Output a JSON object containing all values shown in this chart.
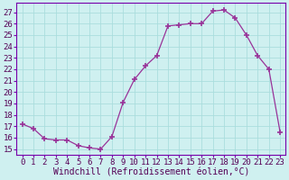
{
  "x": [
    0,
    1,
    2,
    3,
    4,
    5,
    6,
    7,
    8,
    9,
    10,
    11,
    12,
    13,
    14,
    15,
    16,
    17,
    18,
    19,
    20,
    21,
    22,
    23
  ],
  "y": [
    17.2,
    16.8,
    15.9,
    15.8,
    15.8,
    15.3,
    15.1,
    15.0,
    16.1,
    19.1,
    21.1,
    22.3,
    23.2,
    25.8,
    25.9,
    26.0,
    26.0,
    27.1,
    27.2,
    26.5,
    25.0,
    23.2,
    22.0,
    16.5
  ],
  "line_color": "#993399",
  "marker": "+",
  "marker_size": 4,
  "marker_linewidth": 1.2,
  "bg_color": "#cff0f0",
  "grid_color": "#aadddd",
  "xlabel": "Windchill (Refroidissement éolien,°C)",
  "xlabel_fontsize": 7.0,
  "xtick_labels": [
    "0",
    "1",
    "2",
    "3",
    "4",
    "5",
    "6",
    "7",
    "8",
    "9",
    "10",
    "11",
    "12",
    "13",
    "14",
    "15",
    "16",
    "17",
    "18",
    "19",
    "20",
    "21",
    "22",
    "23"
  ],
  "ytick_values": [
    15,
    16,
    17,
    18,
    19,
    20,
    21,
    22,
    23,
    24,
    25,
    26,
    27
  ],
  "ylim": [
    14.5,
    27.8
  ],
  "xlim": [
    -0.5,
    23.5
  ],
  "tick_fontsize": 6.5,
  "label_color": "#550055",
  "spine_color": "#7700aa"
}
